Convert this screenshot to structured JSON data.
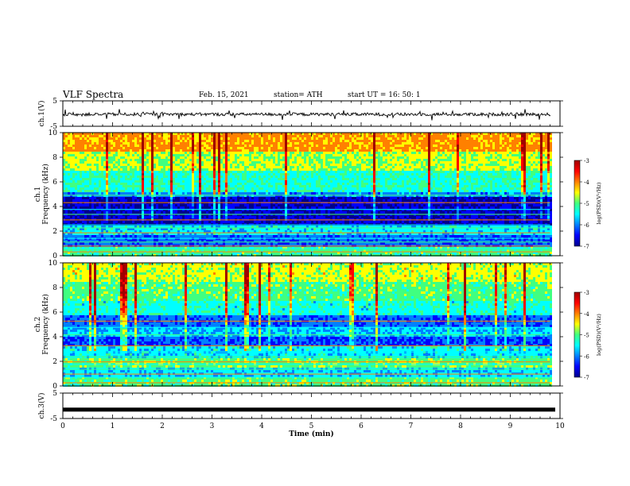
{
  "header": {
    "title": "VLF Spectra",
    "date": "Feb. 15, 2021",
    "station": "station= ATH",
    "start": "start  UT  =   16: 50: 1"
  },
  "chart_data": [
    {
      "type": "line",
      "name": "ch.1 waveform",
      "ylabel": "ch.1(V)",
      "ylim": [
        -5,
        5
      ],
      "yticks": [
        5,
        -5
      ],
      "xlim": [
        0,
        10
      ],
      "trace_color": "#000000",
      "baseline": -0.3
    },
    {
      "type": "heatmap",
      "name": "ch.1 spectrogram",
      "ylabel_lines": [
        "ch.1",
        "Frequency  (kHz)"
      ],
      "ylim": [
        0,
        10
      ],
      "yticks": [
        0,
        2,
        4,
        6,
        8,
        10
      ],
      "xlim": [
        0,
        10
      ],
      "data_end": 9.8,
      "colorbar": {
        "label": "log(PSD)(V²/Hz)",
        "ticks": [
          -3,
          -4,
          -5,
          -6,
          -7
        ],
        "range": [
          -7,
          -3
        ]
      }
    },
    {
      "type": "heatmap",
      "name": "ch.2 spectrogram",
      "ylabel_lines": [
        "ch.2",
        "Frequency  (kHz)"
      ],
      "ylim": [
        0,
        10
      ],
      "yticks": [
        0,
        2,
        4,
        6,
        8,
        10
      ],
      "xlim": [
        0,
        10
      ],
      "data_end": 9.8,
      "colorbar": {
        "label": "log(PSD)(V²/Hz)",
        "ticks": [
          -3,
          -4,
          -5,
          -6,
          -7
        ],
        "range": [
          -7,
          -3
        ]
      }
    },
    {
      "type": "line",
      "name": "ch.3 waveform",
      "ylabel": "ch.3(V)",
      "ylim": [
        -5,
        5
      ],
      "yticks": [
        5,
        -5
      ],
      "xlim": [
        0,
        10
      ],
      "trace_color": "#000000",
      "baseline": -1.5
    }
  ],
  "xaxis": {
    "label": "Time  (min)",
    "ticks": [
      "0",
      "1",
      "2",
      "3",
      "4",
      "5",
      "6",
      "7",
      "8",
      "9",
      "10"
    ]
  },
  "colormap": [
    "#00008b",
    "#0000ff",
    "#0080ff",
    "#00ffff",
    "#40ff80",
    "#ffff00",
    "#ff8000",
    "#ff0000",
    "#a00000"
  ]
}
